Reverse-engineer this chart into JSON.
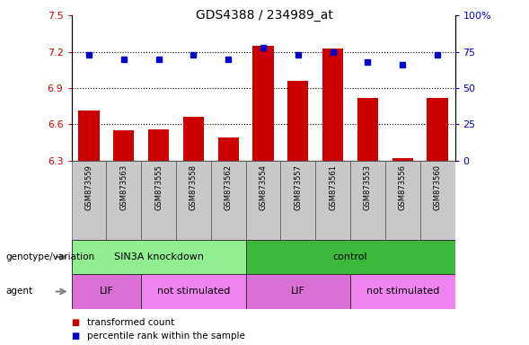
{
  "title": "GDS4388 / 234989_at",
  "samples": [
    "GSM873559",
    "GSM873563",
    "GSM873555",
    "GSM873558",
    "GSM873562",
    "GSM873554",
    "GSM873557",
    "GSM873561",
    "GSM873553",
    "GSM873556",
    "GSM873560"
  ],
  "red_values": [
    6.71,
    6.55,
    6.56,
    6.66,
    6.49,
    7.25,
    6.96,
    7.23,
    6.82,
    6.32,
    6.82
  ],
  "blue_values": [
    73,
    70,
    70,
    73,
    70,
    78,
    73,
    75,
    68,
    66,
    73
  ],
  "ylim_left": [
    6.3,
    7.5
  ],
  "ylim_right": [
    0,
    100
  ],
  "yticks_left": [
    6.3,
    6.6,
    6.9,
    7.2,
    7.5
  ],
  "yticks_right": [
    0,
    25,
    50,
    75,
    100
  ],
  "ytick_labels_left": [
    "6.3",
    "6.6",
    "6.9",
    "7.2",
    "7.5"
  ],
  "ytick_labels_right": [
    "0",
    "25",
    "50",
    "75",
    "100%"
  ],
  "hlines": [
    6.6,
    6.9,
    7.2
  ],
  "genotype_groups": [
    {
      "label": "SIN3A knockdown",
      "start": 0,
      "end": 5,
      "color": "#90EE90"
    },
    {
      "label": "control",
      "start": 5,
      "end": 11,
      "color": "#3CB83C"
    }
  ],
  "agent_groups": [
    {
      "label": "LIF",
      "start": 0,
      "end": 2,
      "color": "#DA70D6"
    },
    {
      "label": "not stimulated",
      "start": 2,
      "end": 5,
      "color": "#EE82EE"
    },
    {
      "label": "LIF",
      "start": 5,
      "end": 8,
      "color": "#DA70D6"
    },
    {
      "label": "not stimulated",
      "start": 8,
      "end": 11,
      "color": "#EE82EE"
    }
  ],
  "red_color": "#CC0000",
  "blue_color": "#0000CC",
  "bar_width": 0.6,
  "legend_items": [
    {
      "label": "transformed count",
      "color": "#CC0000"
    },
    {
      "label": "percentile rank within the sample",
      "color": "#0000CC"
    }
  ],
  "genotype_label": "genotype/variation",
  "agent_label": "agent",
  "left_axis_color": "#CC0000",
  "right_axis_color": "#0000CC",
  "sample_bg_color": "#C8C8C8",
  "arrow_color": "#808080"
}
